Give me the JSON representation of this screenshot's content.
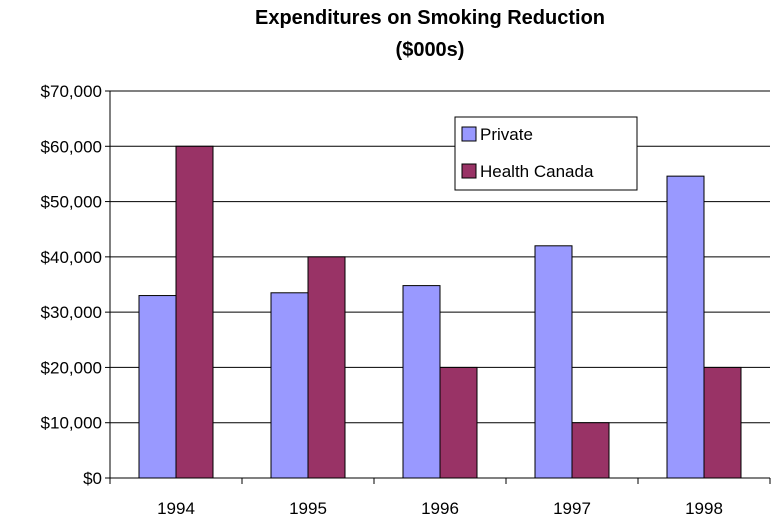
{
  "chart_data": {
    "type": "bar",
    "title": "Expenditures on Smoking Reduction",
    "subtitle": "($000s)",
    "xlabel": "",
    "ylabel": "",
    "categories": [
      "1994",
      "1995",
      "1996",
      "1997",
      "1998"
    ],
    "series": [
      {
        "name": "Private",
        "values": [
          33000,
          33500,
          34800,
          42000,
          54600
        ],
        "color": "#9999ff"
      },
      {
        "name": "Health Canada",
        "values": [
          60000,
          40000,
          20000,
          10000,
          20000
        ],
        "color": "#993366"
      }
    ],
    "ylim": [
      0,
      70000
    ],
    "yticks": [
      "$0",
      "$10,000",
      "$20,000",
      "$30,000",
      "$40,000",
      "$50,000",
      "$60,000",
      "$70,000"
    ],
    "grid": true,
    "legend_position": "top-right"
  }
}
